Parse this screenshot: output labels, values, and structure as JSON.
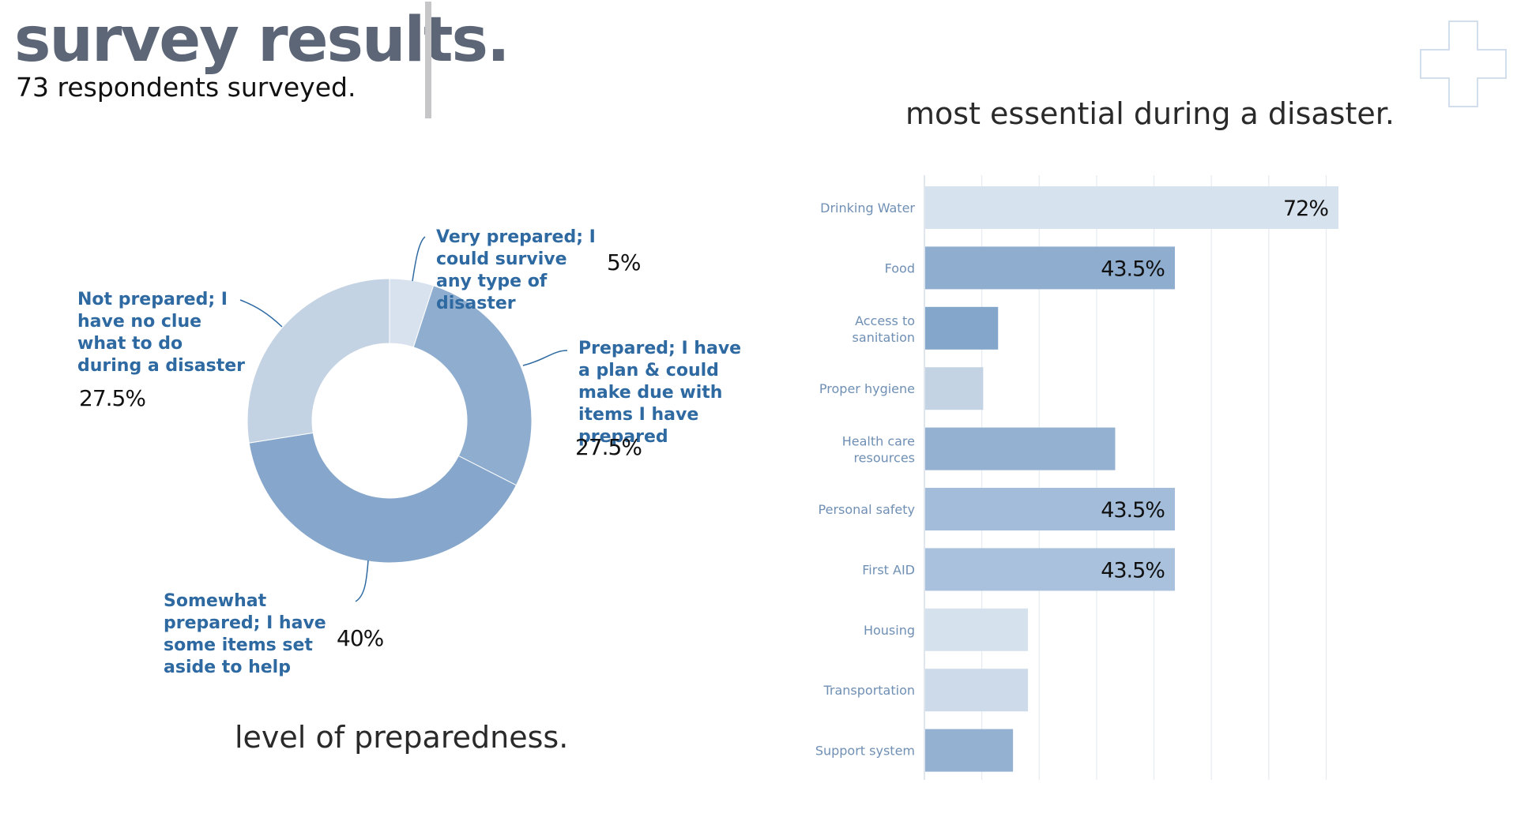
{
  "header": {
    "title": "survey results.",
    "subtitle": "73 respondents surveyed."
  },
  "colors": {
    "title": "#5c6676",
    "label": "#2e6aa1",
    "axis_label": "#6f8fb4",
    "grid": "#e6ebf1",
    "cross": "#d3deed"
  },
  "icons": {
    "corner": "plus-cross-icon"
  },
  "chart_data": [
    {
      "type": "pie",
      "style": "donut",
      "caption": "level of preparedness.",
      "slices": [
        {
          "label": "Very prepared; I could survive any type of disaster",
          "value": 5,
          "value_label": "5%",
          "color": "#d8e2ee"
        },
        {
          "label": "Prepared; I have a plan & could make due with items I have prepared",
          "value": 27.5,
          "value_label": "27.5%",
          "color": "#8fadcf"
        },
        {
          "label": "Somewhat prepared; I have some items set aside to help",
          "value": 40,
          "value_label": "40%",
          "color": "#86a7cb"
        },
        {
          "label": "Not prepared; I have no clue what to do during a disaster",
          "value": 27.5,
          "value_label": "27.5%",
          "color": "#c4d3e3"
        }
      ]
    },
    {
      "type": "bar",
      "orientation": "horizontal",
      "caption": "most essential during a disaster.",
      "xlim": [
        0,
        70
      ],
      "grid": true,
      "categories": [
        "Drinking Water",
        "Food",
        "Access to sanitation",
        "Proper hygiene",
        "Health care resources",
        "Personal safety",
        "First AID",
        "Housing",
        "Transportation",
        "Support system"
      ],
      "values": [
        72,
        43.5,
        12.7,
        10.1,
        33.1,
        43.5,
        43.5,
        17.9,
        17.9,
        15.3
      ],
      "data_labels": [
        "72%",
        "43.5%",
        "",
        "",
        "",
        "43.5%",
        "43.5%",
        "",
        "",
        ""
      ],
      "colors": [
        "#d6e2ee",
        "#8fadcf",
        "#84a6ca",
        "#c4d3e3",
        "#94b1d2",
        "#a2bcd9",
        "#a9c1dc",
        "#d6e1ee",
        "#ccdae9",
        "#94b1d2"
      ]
    }
  ]
}
